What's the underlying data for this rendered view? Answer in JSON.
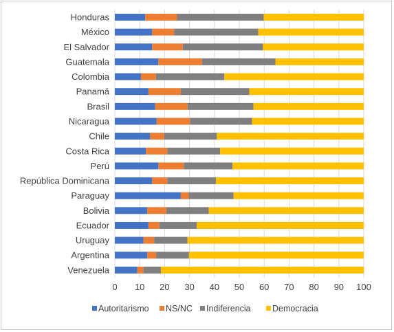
{
  "chart_data": {
    "type": "bar",
    "orientation": "horizontal",
    "stacked": true,
    "categories": [
      "Honduras",
      "México",
      "El Salvador",
      "Guatemala",
      "Colombia",
      "Panamá",
      "Brasil",
      "Nicaragua",
      "Chile",
      "Costa Rica",
      "Perú",
      "República Dominicana",
      "Paraguay",
      "Bolivia",
      "Ecuador",
      "Uruguay",
      "Argentina",
      "Venezuela"
    ],
    "series": [
      {
        "name": "Autoritarismo",
        "color": "#4472c4",
        "values": [
          12.2,
          15,
          15,
          17.5,
          10.5,
          13.5,
          16.2,
          16.8,
          14.2,
          12.5,
          17.5,
          15,
          26.5,
          13,
          13.5,
          11.5,
          13,
          9
        ]
      },
      {
        "name": "NS/NC",
        "color": "#ed7d31",
        "values": [
          12.8,
          8.8,
          12.3,
          17.5,
          6,
          13,
          13,
          13.4,
          5.6,
          8.6,
          10.2,
          6.1,
          3.2,
          7.7,
          4.4,
          4.3,
          3.6,
          2.5
        ]
      },
      {
        "name": "Indiferencia",
        "color": "#7f7f7f",
        "values": [
          34.8,
          33.8,
          32.2,
          29.5,
          27.5,
          27.5,
          26.5,
          24.9,
          21.2,
          21.2,
          19.6,
          19.5,
          18,
          17,
          15,
          13.4,
          13.2,
          7
        ]
      },
      {
        "name": "Democracia",
        "color": "#ffc000",
        "values": [
          40.2,
          42.4,
          40.5,
          35.5,
          56,
          46,
          44.3,
          44.9,
          59,
          57.7,
          52.7,
          59.4,
          52.3,
          62.3,
          67.1,
          70.8,
          70.2,
          81.5
        ]
      }
    ],
    "xlim": [
      0,
      100
    ],
    "xticks": [
      0,
      10,
      20,
      30,
      40,
      50,
      60,
      70,
      80,
      90,
      100
    ],
    "grid": "vertical",
    "legend_position": "bottom"
  }
}
